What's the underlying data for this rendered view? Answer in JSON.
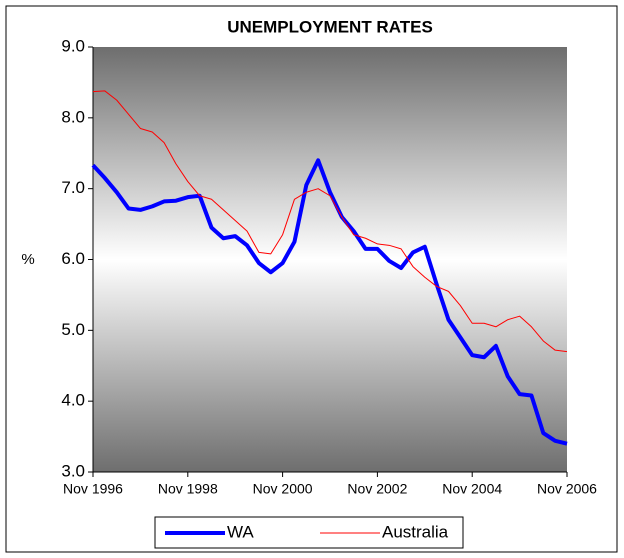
{
  "chart_data": {
    "type": "line",
    "title": "UNEMPLOYMENT RATES",
    "y_label": "%",
    "categories": [
      "Nov 1996",
      null,
      null,
      null,
      null,
      null,
      null,
      null,
      "Nov 1998",
      null,
      null,
      null,
      null,
      null,
      null,
      null,
      "Nov 2000",
      null,
      null,
      null,
      null,
      null,
      null,
      null,
      "Nov 2002",
      null,
      null,
      null,
      null,
      null,
      null,
      null,
      "Nov 2004",
      null,
      null,
      null,
      null,
      null,
      null,
      null,
      "Nov 2006"
    ],
    "series": [
      {
        "name": "WA",
        "color": "#0000ff",
        "values": [
          7.33,
          7.15,
          6.95,
          6.72,
          6.7,
          6.75,
          6.82,
          6.83,
          6.88,
          6.9,
          6.45,
          6.3,
          6.33,
          6.2,
          5.95,
          5.82,
          5.95,
          6.25,
          7.05,
          7.4,
          6.95,
          6.6,
          6.4,
          6.15,
          6.15,
          5.98,
          5.88,
          6.1,
          6.18,
          5.65,
          5.15,
          4.9,
          4.65,
          4.62,
          4.78,
          4.35,
          4.1,
          4.08,
          3.55,
          3.44,
          3.4
        ]
      },
      {
        "name": "Australia",
        "color": "#ff0000",
        "values": [
          8.37,
          8.38,
          8.25,
          8.05,
          7.85,
          7.8,
          7.65,
          7.35,
          7.1,
          6.9,
          6.85,
          6.7,
          6.55,
          6.4,
          6.1,
          6.08,
          6.35,
          6.85,
          6.95,
          7.0,
          6.9,
          6.6,
          6.35,
          6.3,
          6.22,
          6.2,
          6.15,
          5.9,
          5.75,
          5.62,
          5.55,
          5.35,
          5.1,
          5.1,
          5.05,
          5.15,
          5.2,
          5.05,
          4.85,
          4.72,
          4.7
        ]
      }
    ],
    "ylim": [
      3,
      9
    ],
    "yticks": [
      {
        "value": 3,
        "label": "3.0"
      },
      {
        "value": 4,
        "label": "4.0"
      },
      {
        "value": 5,
        "label": "5.0"
      },
      {
        "value": 6,
        "label": "6.0"
      },
      {
        "value": 7,
        "label": "7.0"
      },
      {
        "value": 8,
        "label": "8.0"
      },
      {
        "value": 9,
        "label": "9.0"
      }
    ],
    "grid": false,
    "legend": "bottom"
  }
}
